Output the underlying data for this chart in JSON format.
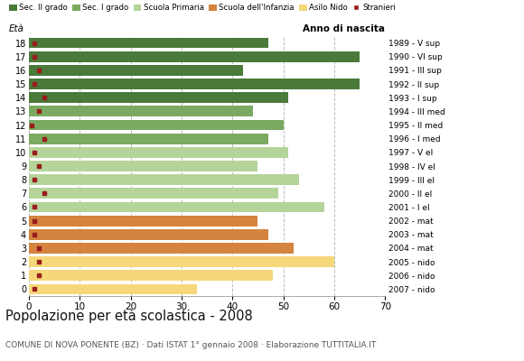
{
  "ages": [
    0,
    1,
    2,
    3,
    4,
    5,
    6,
    7,
    8,
    9,
    10,
    11,
    12,
    13,
    14,
    15,
    16,
    17,
    18
  ],
  "bar_values": [
    33,
    48,
    60,
    52,
    47,
    45,
    58,
    49,
    53,
    45,
    51,
    47,
    50,
    44,
    51,
    65,
    42,
    65,
    47
  ],
  "stranieri_values": [
    1,
    2,
    2,
    2,
    1,
    1,
    1,
    3,
    1,
    2,
    1,
    3,
    0.5,
    2,
    3,
    1,
    2,
    1,
    1
  ],
  "right_labels": [
    "2007 - nido",
    "2006 - nido",
    "2005 - nido",
    "2004 - mat",
    "2003 - mat",
    "2002 - mat",
    "2001 - I el",
    "2000 - II el",
    "1999 - III el",
    "1998 - IV el",
    "1997 - V el",
    "1996 - I med",
    "1995 - II med",
    "1994 - III med",
    "1993 - I sup",
    "1992 - II sup",
    "1991 - III sup",
    "1990 - VI sup",
    "1989 - V sup"
  ],
  "bar_colors": {
    "sec2": "#4a7a3a",
    "sec1": "#7aaa60",
    "primaria": "#b5d49a",
    "infanzia": "#d4843e",
    "nido": "#f5d87a",
    "stranieri": "#9b1c1c"
  },
  "category_ranges": {
    "sec2": [
      14,
      18
    ],
    "sec1": [
      11,
      13
    ],
    "primaria": [
      6,
      10
    ],
    "infanzia": [
      3,
      5
    ],
    "nido": [
      0,
      2
    ]
  },
  "legend_labels": [
    "Sec. II grado",
    "Sec. I grado",
    "Scuola Primaria",
    "Scuola dell'Infanzia",
    "Asilo Nido",
    "Stranieri"
  ],
  "title": "Popolazione per età scolastica - 2008",
  "subtitle": "COMUNE DI NOVA PONENTE (BZ) · Dati ISTAT 1° gennaio 2008 · Elaborazione TUTTITALIA.IT",
  "label_eta": "Età",
  "label_anno": "Anno di nascita",
  "xlim": [
    0,
    70
  ],
  "xticks": [
    0,
    10,
    20,
    30,
    40,
    50,
    60,
    70
  ],
  "background_color": "#ffffff",
  "grid_color": "#bbbbbb"
}
